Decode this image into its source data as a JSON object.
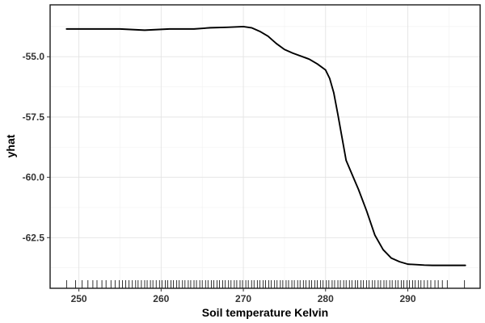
{
  "chart_data": {
    "type": "line",
    "title": "",
    "xlabel": "Soil temperature Kelvin",
    "ylabel": "yhat",
    "xlim": [
      246.5,
      298.8
    ],
    "ylim": [
      -64.6,
      -52.85
    ],
    "x_ticks": [
      250,
      260,
      270,
      280,
      290
    ],
    "x_tick_labels": [
      "250",
      "260",
      "270",
      "280",
      "290"
    ],
    "y_ticks": [
      -55.0,
      -57.5,
      -60.0,
      -62.5
    ],
    "y_tick_labels": [
      "-55.0",
      "-57.5",
      "-60.0",
      "-62.5"
    ],
    "grid": true,
    "legend": "none",
    "line_color": "#000000",
    "series": [
      {
        "x": [
          248.5,
          252,
          255,
          258,
          261,
          264,
          266,
          268,
          270,
          271,
          272,
          273,
          274,
          275,
          276,
          278,
          279,
          280,
          280.5,
          281,
          281.5,
          282,
          282.5,
          283,
          283.5,
          284,
          285,
          286,
          287,
          288,
          289,
          290,
          291,
          292,
          293,
          295,
          297
        ],
        "y": [
          -53.85,
          -53.85,
          -53.85,
          -53.9,
          -53.85,
          -53.85,
          -53.8,
          -53.78,
          -53.75,
          -53.8,
          -53.95,
          -54.15,
          -54.45,
          -54.7,
          -54.85,
          -55.1,
          -55.3,
          -55.55,
          -55.9,
          -56.5,
          -57.4,
          -58.35,
          -59.3,
          -59.7,
          -60.1,
          -60.5,
          -61.4,
          -62.4,
          -63.0,
          -63.35,
          -63.5,
          -63.6,
          -63.62,
          -63.64,
          -63.65,
          -63.65,
          -63.65
        ]
      }
    ],
    "rug_x": [
      248.5,
      249.6,
      250.4,
      251.1,
      251.7,
      252.2,
      252.8,
      253.3,
      253.9,
      254.4,
      254.9,
      255.3,
      255.7,
      256.1,
      256.5,
      256.9,
      257.2,
      257.6,
      258.0,
      258.3,
      258.7,
      259.0,
      259.4,
      259.8,
      260.1,
      260.5,
      260.8,
      261.2,
      261.5,
      261.9,
      262.2,
      262.6,
      262.9,
      263.3,
      263.6,
      264.0,
      264.3,
      264.7,
      265.0,
      265.4,
      265.7,
      266.1,
      266.4,
      266.8,
      267.1,
      267.5,
      267.8,
      268.2,
      268.5,
      268.9,
      269.2,
      269.6,
      269.9,
      270.3,
      270.6,
      271.0,
      271.3,
      271.7,
      272.0,
      272.4,
      272.7,
      273.1,
      273.4,
      273.8,
      274.1,
      274.5,
      274.8,
      275.2,
      275.5,
      275.9,
      276.2,
      276.6,
      276.9,
      277.3,
      277.6,
      278.0,
      278.3,
      278.7,
      279.0,
      279.4,
      279.7,
      280.1,
      280.4,
      280.8,
      281.1,
      281.5,
      281.8,
      282.2,
      282.5,
      282.9,
      283.2,
      283.6,
      283.9,
      284.3,
      284.6,
      285.0,
      285.3,
      285.7,
      286.0,
      286.4,
      286.7,
      287.1,
      287.4,
      287.8,
      288.1,
      288.5,
      288.8,
      289.2,
      289.5,
      289.9,
      290.2,
      290.6,
      290.9,
      291.3,
      291.6,
      292.0,
      292.4,
      292.8,
      293.3,
      293.7,
      294.2,
      294.8,
      296.9
    ]
  }
}
